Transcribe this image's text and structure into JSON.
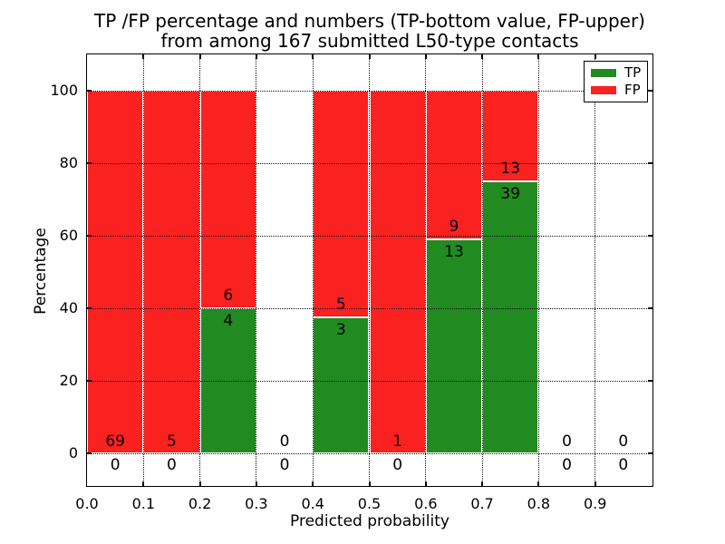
{
  "chart_data": {
    "type": "bar",
    "stacked": true,
    "unit": "percentage",
    "title_line1": "TP /FP percentage and numbers (TP-bottom value, FP-upper)",
    "title_line2": "from among 167 submitted L50-type contacts",
    "xlabel": "Predicted probability",
    "ylabel": "Percentage",
    "total_contacts": 167,
    "x_ticks": [
      "0.0",
      "0.1",
      "0.2",
      "0.3",
      "0.4",
      "0.5",
      "0.6",
      "0.7",
      "0.8",
      "0.9"
    ],
    "y_ticks": [
      0,
      20,
      40,
      60,
      80,
      100
    ],
    "xlim": [
      0.0,
      1.0
    ],
    "ylim": [
      -10,
      110
    ],
    "grid": true,
    "bins": [
      {
        "range": "0.0-0.1",
        "tp": 0,
        "fp": 69,
        "tp_pct": 0,
        "fp_pct": 100
      },
      {
        "range": "0.1-0.2",
        "tp": 0,
        "fp": 5,
        "tp_pct": 0,
        "fp_pct": 100
      },
      {
        "range": "0.2-0.3",
        "tp": 4,
        "fp": 6,
        "tp_pct": 40,
        "fp_pct": 60
      },
      {
        "range": "0.3-0.4",
        "tp": 0,
        "fp": 0,
        "tp_pct": null,
        "fp_pct": null
      },
      {
        "range": "0.4-0.5",
        "tp": 3,
        "fp": 5,
        "tp_pct": 37.5,
        "fp_pct": 62.5
      },
      {
        "range": "0.5-0.6",
        "tp": 0,
        "fp": 1,
        "tp_pct": 0,
        "fp_pct": 100
      },
      {
        "range": "0.6-0.7",
        "tp": 13,
        "fp": 9,
        "tp_pct": 59.1,
        "fp_pct": 40.9
      },
      {
        "range": "0.7-0.8",
        "tp": 39,
        "fp": 13,
        "tp_pct": 75,
        "fp_pct": 25
      },
      {
        "range": "0.8-0.9",
        "tp": 0,
        "fp": 0,
        "tp_pct": null,
        "fp_pct": null
      },
      {
        "range": "0.9-1.0",
        "tp": 0,
        "fp": 0,
        "tp_pct": null,
        "fp_pct": null
      }
    ],
    "legend": [
      {
        "label": "TP",
        "color": "#218a21"
      },
      {
        "label": "FP",
        "color": "#fa2121"
      }
    ],
    "colors": {
      "tp": "#218a21",
      "fp": "#fa2121",
      "grid": "#111111",
      "bar_edge": "#ffffff"
    },
    "legend_position": "upper right"
  }
}
